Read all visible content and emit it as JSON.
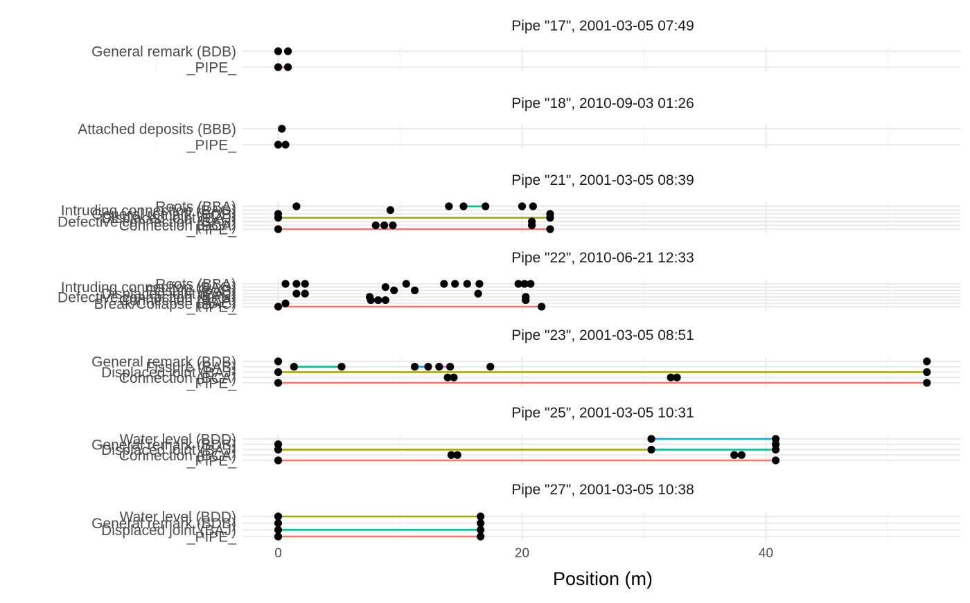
{
  "chart_data": {
    "type": "scatter",
    "xlabel": "Position (m)",
    "xlim": [
      -3,
      56
    ],
    "x_ticks": [
      0,
      20,
      40
    ],
    "grid": true,
    "legend": "none",
    "colors": {
      "_PIPE_": "#f8766d",
      "Displaced joint (BAJ)": "#00c08b",
      "General remark (BDB)": "#a3a500",
      "Fissure (BAB)": "#00b0f6",
      "Water level (BDD)": "#00b0f6",
      "Roots (BBA)": "#00c08b",
      "pink": "#e76bf3",
      "point": "#000000"
    },
    "panels": [
      {
        "title": "Pipe \"17\", 2001-03-05 07:49",
        "rows": [
          "General remark (BDB)",
          "_PIPE_"
        ],
        "points": [
          {
            "row": "General remark (BDB)",
            "x": 0
          },
          {
            "row": "General remark (BDB)",
            "x": 0.8
          },
          {
            "row": "_PIPE_",
            "x": 0
          },
          {
            "row": "_PIPE_",
            "x": 0.8
          }
        ],
        "segments": [
          {
            "row": "_PIPE_",
            "from": 0,
            "to": 0.8,
            "color": "#f8766d"
          }
        ]
      },
      {
        "title": "Pipe \"18\", 2010-09-03 01:26",
        "rows": [
          "Attached deposits (BBB)",
          "_PIPE_"
        ],
        "points": [
          {
            "row": "Attached deposits (BBB)",
            "x": 0.3
          },
          {
            "row": "_PIPE_",
            "x": 0
          },
          {
            "row": "_PIPE_",
            "x": 0.6
          }
        ],
        "segments": [
          {
            "row": "_PIPE_",
            "from": 0,
            "to": 0.6,
            "color": "#f8766d"
          }
        ]
      },
      {
        "title": "Pipe \"21\", 2001-03-05 08:39",
        "rows": [
          "Roots (BBA)",
          "Intruding connection (BAG)",
          "General remark (BDB)",
          "Displaced joint (BAJ)",
          "Defective connection (BAH)",
          "Connection (BCA)",
          "_PIPE_"
        ],
        "points": [
          {
            "row": "Roots (BBA)",
            "x": 1.5
          },
          {
            "row": "Roots (BBA)",
            "x": 14
          },
          {
            "row": "Roots (BBA)",
            "x": 15.2
          },
          {
            "row": "Roots (BBA)",
            "x": 17
          },
          {
            "row": "Roots (BBA)",
            "x": 20
          },
          {
            "row": "Roots (BBA)",
            "x": 20.9
          },
          {
            "row": "Intruding connection (BAG)",
            "x": 9.2
          },
          {
            "row": "General remark (BDB)",
            "x": 0
          },
          {
            "row": "General remark (BDB)",
            "x": 22.3
          },
          {
            "row": "Displaced joint (BAJ)",
            "x": 0
          },
          {
            "row": "Displaced joint (BAJ)",
            "x": 22.3
          },
          {
            "row": "Defective connection (BAH)",
            "x": 20.8
          },
          {
            "row": "Connection (BCA)",
            "x": 8
          },
          {
            "row": "Connection (BCA)",
            "x": 8.7
          },
          {
            "row": "Connection (BCA)",
            "x": 9.4
          },
          {
            "row": "Connection (BCA)",
            "x": 20.8
          },
          {
            "row": "_PIPE_",
            "x": 0
          },
          {
            "row": "_PIPE_",
            "x": 22.3
          }
        ],
        "segments": [
          {
            "row": "Roots (BBA)",
            "from": 15.2,
            "to": 17,
            "color": "#00c08b"
          },
          {
            "row": "Displaced joint (BAJ)",
            "from": 0,
            "to": 22.3,
            "color": "#a3a500"
          },
          {
            "row": "_PIPE_",
            "from": 0,
            "to": 22.3,
            "color": "#f8766d"
          }
        ]
      },
      {
        "title": "Pipe \"22\", 2010-06-21 12:33",
        "rows": [
          "Roots (BBA)",
          "Intruding connection (BAG)",
          "Fissure (BAB)",
          "Displaced joint (BAJ)",
          "Defective connection (BAH)",
          "Connection (BCA)",
          "Break/Collapse (BAC)",
          "_PIPE_"
        ],
        "points": [
          {
            "row": "Roots (BBA)",
            "x": 0.6
          },
          {
            "row": "Roots (BBA)",
            "x": 1.5
          },
          {
            "row": "Roots (BBA)",
            "x": 2.2
          },
          {
            "row": "Roots (BBA)",
            "x": 10.5
          },
          {
            "row": "Roots (BBA)",
            "x": 13.6
          },
          {
            "row": "Roots (BBA)",
            "x": 14.5
          },
          {
            "row": "Roots (BBA)",
            "x": 15.5
          },
          {
            "row": "Roots (BBA)",
            "x": 16.5
          },
          {
            "row": "Roots (BBA)",
            "x": 19.7
          },
          {
            "row": "Roots (BBA)",
            "x": 20.2
          },
          {
            "row": "Roots (BBA)",
            "x": 20.7
          },
          {
            "row": "Intruding connection (BAG)",
            "x": 8.8
          },
          {
            "row": "Fissure (BAB)",
            "x": 9.5
          },
          {
            "row": "Fissure (BAB)",
            "x": 11.2
          },
          {
            "row": "Displaced joint (BAJ)",
            "x": 1.5
          },
          {
            "row": "Displaced joint (BAJ)",
            "x": 2.2
          },
          {
            "row": "Displaced joint (BAJ)",
            "x": 16.4
          },
          {
            "row": "Defective connection (BAH)",
            "x": 7.5
          },
          {
            "row": "Defective connection (BAH)",
            "x": 20.3
          },
          {
            "row": "Connection (BCA)",
            "x": 7.6
          },
          {
            "row": "Connection (BCA)",
            "x": 8.2
          },
          {
            "row": "Connection (BCA)",
            "x": 8.8
          },
          {
            "row": "Connection (BCA)",
            "x": 20.3
          },
          {
            "row": "Break/Collapse (BAC)",
            "x": 0.6
          },
          {
            "row": "_PIPE_",
            "x": 0
          },
          {
            "row": "_PIPE_",
            "x": 21.6
          }
        ],
        "segments": [
          {
            "row": "_PIPE_",
            "from": 0,
            "to": 21.6,
            "color": "#f8766d"
          }
        ]
      },
      {
        "title": "Pipe \"23\", 2001-03-05 08:51",
        "rows": [
          "General remark (BDB)",
          "Fissure (BAB)",
          "Displaced joint (BAJ)",
          "Connection (BCA)",
          "_PIPE_"
        ],
        "points": [
          {
            "row": "General remark (BDB)",
            "x": 0
          },
          {
            "row": "General remark (BDB)",
            "x": 53.2
          },
          {
            "row": "Fissure (BAB)",
            "x": 1.3
          },
          {
            "row": "Fissure (BAB)",
            "x": 5.2
          },
          {
            "row": "Fissure (BAB)",
            "x": 11.2
          },
          {
            "row": "Fissure (BAB)",
            "x": 12.3
          },
          {
            "row": "Fissure (BAB)",
            "x": 13.2
          },
          {
            "row": "Fissure (BAB)",
            "x": 14.1
          },
          {
            "row": "Fissure (BAB)",
            "x": 17.4
          },
          {
            "row": "Displaced joint (BAJ)",
            "x": 0
          },
          {
            "row": "Displaced joint (BAJ)",
            "x": 53.2
          },
          {
            "row": "Connection (BCA)",
            "x": 13.9
          },
          {
            "row": "Connection (BCA)",
            "x": 14.4
          },
          {
            "row": "Connection (BCA)",
            "x": 32.2
          },
          {
            "row": "Connection (BCA)",
            "x": 32.7
          },
          {
            "row": "_PIPE_",
            "x": 0
          },
          {
            "row": "_PIPE_",
            "x": 53.2
          }
        ],
        "segments": [
          {
            "row": "Fissure (BAB)",
            "from": 1.3,
            "to": 5.2,
            "color": "#00c08b"
          },
          {
            "row": "Fissure (BAB)",
            "from": 11.2,
            "to": 12.3,
            "color": "#00b0f6"
          },
          {
            "row": "Fissure (BAB)",
            "from": 13.2,
            "to": 14.1,
            "color": "#e76bf3"
          },
          {
            "row": "Displaced joint (BAJ)",
            "from": 0,
            "to": 53.2,
            "color": "#a3a500"
          },
          {
            "row": "_PIPE_",
            "from": 0,
            "to": 53.2,
            "color": "#f8766d"
          }
        ]
      },
      {
        "title": "Pipe \"25\", 2001-03-05 10:31",
        "rows": [
          "Water level (BDD)",
          "General remark (BDB)",
          "Displaced joint (BAJ)",
          "Connection (BCA)",
          "_PIPE_"
        ],
        "points": [
          {
            "row": "Water level (BDD)",
            "x": 30.6
          },
          {
            "row": "Water level (BDD)",
            "x": 40.8
          },
          {
            "row": "General remark (BDB)",
            "x": 0
          },
          {
            "row": "General remark (BDB)",
            "x": 40.8
          },
          {
            "row": "Displaced joint (BAJ)",
            "x": 0
          },
          {
            "row": "Displaced joint (BAJ)",
            "x": 30.6
          },
          {
            "row": "Displaced joint (BAJ)",
            "x": 40.8
          },
          {
            "row": "Connection (BCA)",
            "x": 14.2
          },
          {
            "row": "Connection (BCA)",
            "x": 14.7
          },
          {
            "row": "Connection (BCA)",
            "x": 37.4
          },
          {
            "row": "Connection (BCA)",
            "x": 38
          },
          {
            "row": "_PIPE_",
            "x": 0
          },
          {
            "row": "_PIPE_",
            "x": 40.8
          }
        ],
        "segments": [
          {
            "row": "Water level (BDD)",
            "from": 30.6,
            "to": 40.8,
            "color": "#00b0f6"
          },
          {
            "row": "Displaced joint (BAJ)",
            "from": 0,
            "to": 30.6,
            "color": "#a3a500"
          },
          {
            "row": "Displaced joint (BAJ)",
            "from": 30.6,
            "to": 40.8,
            "color": "#00c08b"
          },
          {
            "row": "_PIPE_",
            "from": 0,
            "to": 40.8,
            "color": "#f8766d"
          }
        ]
      },
      {
        "title": "Pipe \"27\", 2001-03-05 10:38",
        "rows": [
          "Water level (BDD)",
          "General remark (BDB)",
          "Displaced joint (BAJ)",
          "_PIPE_"
        ],
        "points": [
          {
            "row": "Water level (BDD)",
            "x": 0
          },
          {
            "row": "Water level (BDD)",
            "x": 16.6
          },
          {
            "row": "General remark (BDB)",
            "x": 0
          },
          {
            "row": "General remark (BDB)",
            "x": 16.6
          },
          {
            "row": "Displaced joint (BAJ)",
            "x": 0
          },
          {
            "row": "Displaced joint (BAJ)",
            "x": 16.6
          },
          {
            "row": "_PIPE_",
            "x": 0
          },
          {
            "row": "_PIPE_",
            "x": 16.6
          }
        ],
        "segments": [
          {
            "row": "Water level (BDD)",
            "from": 0,
            "to": 16.6,
            "color": "#a3a500"
          },
          {
            "row": "Displaced joint (BAJ)",
            "from": 0,
            "to": 16.6,
            "color": "#00c08b"
          },
          {
            "row": "_PIPE_",
            "from": 0,
            "to": 16.6,
            "color": "#f8766d"
          }
        ]
      }
    ]
  }
}
